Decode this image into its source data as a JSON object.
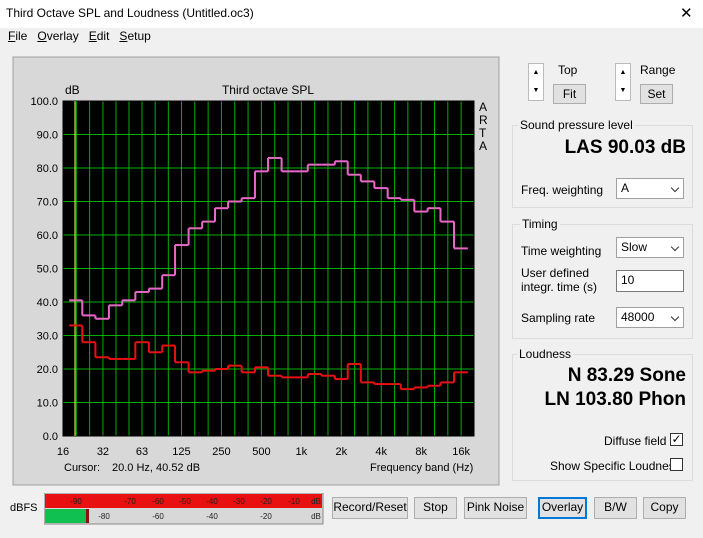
{
  "window": {
    "title": "Third Octave SPL and Loudness (Untitled.oc3)",
    "menu": [
      "File",
      "Overlay",
      "Edit",
      "Setup"
    ]
  },
  "scale_controls": {
    "top": "Top",
    "fit": "Fit",
    "range": "Range",
    "set": "Set"
  },
  "spl": {
    "heading": "Sound pressure level",
    "reading": "LAS 90.03 dB",
    "freq_weighting_label": "Freq. weighting",
    "freq_weighting": "A"
  },
  "timing": {
    "heading": "Timing",
    "time_weighting_label": "Time weighting",
    "time_weighting": "Slow",
    "integr_time_label": "User defined integr. time (s)",
    "integr_time": "10",
    "sampling_rate_label": "Sampling rate",
    "sampling_rate": "48000"
  },
  "loudness": {
    "heading": "Loudness",
    "sone": "N 83.29 Sone",
    "phon": "LN 103.80 Phon",
    "diffuse_field": "Diffuse field",
    "show_specific": "Show Specific Loudness"
  },
  "meter": {
    "label": "dBFS",
    "top_scale": [
      "-90",
      "-70",
      "-60",
      "-50",
      "-40",
      "-30",
      "-20",
      "-10",
      "dB"
    ],
    "bottom_scale": [
      "-80",
      "-60",
      "-40",
      "-20",
      "dB"
    ]
  },
  "buttons": [
    "Record/Reset",
    "Stop",
    "Pink Noise",
    "Overlay",
    "B/W",
    "Copy"
  ],
  "chart_data": {
    "type": "line",
    "step": true,
    "title": "Third octave SPL",
    "y_label": "dB",
    "watermark": "ARTA",
    "x_label": "Frequency band (Hz)",
    "cursor_label": "Cursor:",
    "cursor_value": "20.0 Hz, 40.52 dB",
    "x": [
      20,
      25,
      31.5,
      40,
      50,
      63,
      80,
      100,
      125,
      160,
      200,
      250,
      315,
      400,
      500,
      630,
      800,
      1000,
      1250,
      1600,
      2000,
      2500,
      3150,
      4000,
      5000,
      6300,
      8000,
      10000,
      12500,
      16000
    ],
    "series": [
      {
        "color": "#e868c8",
        "values": [
          40.5,
          36,
          35,
          39,
          40.5,
          43,
          44,
          48,
          57,
          62,
          64,
          68,
          70,
          71,
          79,
          83,
          79,
          79,
          81,
          81,
          82,
          78,
          76,
          74,
          71,
          70.5,
          67,
          68,
          64,
          56
        ]
      },
      {
        "color": "#e81010",
        "values": [
          33,
          28,
          23.5,
          23,
          23,
          28,
          25,
          27,
          22,
          19,
          19.5,
          20,
          21,
          19,
          20.5,
          18,
          17.5,
          17.5,
          18.5,
          18,
          17,
          21.5,
          16,
          15.5,
          15.5,
          14,
          14.5,
          15,
          16,
          19
        ]
      }
    ],
    "xlog": true,
    "xlim": [
      16,
      20000
    ],
    "xticks": [
      16,
      32,
      63,
      125,
      250,
      500,
      {
        "value": 1000,
        "label": "1k"
      },
      {
        "value": 2000,
        "label": "2k"
      },
      {
        "value": 4000,
        "label": "4k"
      },
      {
        "value": 8000,
        "label": "8k"
      },
      {
        "value": 16000,
        "label": "16k"
      }
    ],
    "ylim": [
      0,
      100
    ],
    "yticks": [
      {
        "value": 0,
        "label": "0.0"
      },
      {
        "value": 10,
        "label": "10.0"
      },
      {
        "value": 20,
        "label": "20.0"
      },
      {
        "value": 30,
        "label": "30.0"
      },
      {
        "value": 40,
        "label": "40.0"
      },
      {
        "value": 50,
        "label": "50.0"
      },
      {
        "value": 60,
        "label": "60.0"
      },
      {
        "value": 70,
        "label": "70.0"
      },
      {
        "value": 80,
        "label": "80.0"
      },
      {
        "value": 90,
        "label": "90.0"
      },
      {
        "value": 100,
        "label": "100.0"
      }
    ],
    "grid": true,
    "grid_color": "#00b000",
    "plot_background": "#000000"
  }
}
